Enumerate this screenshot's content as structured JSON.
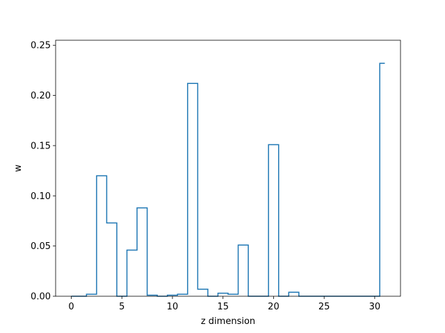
{
  "chart_data": {
    "type": "line",
    "style": "step",
    "title": "",
    "xlabel": "z dimension",
    "ylabel": "w",
    "xlim": [
      -1.55,
      32.55
    ],
    "ylim": [
      0,
      0.255
    ],
    "xticks": [
      0,
      5,
      10,
      15,
      20,
      25,
      30
    ],
    "xtick_labels": [
      "0",
      "5",
      "10",
      "15",
      "20",
      "25",
      "30"
    ],
    "yticks": [
      0,
      0.05,
      0.1,
      0.15,
      0.2,
      0.25
    ],
    "ytick_labels": [
      "0.00",
      "0.05",
      "0.10",
      "0.15",
      "0.20",
      "0.25"
    ],
    "grid": false,
    "line_color": "#1f77b4",
    "x": [
      0,
      1,
      2,
      3,
      4,
      5,
      6,
      7,
      8,
      9,
      10,
      11,
      12,
      13,
      14,
      15,
      16,
      17,
      18,
      19,
      20,
      21,
      22,
      23,
      24,
      25,
      26,
      27,
      28,
      29,
      30,
      31
    ],
    "values": [
      0.0,
      0.0,
      0.002,
      0.12,
      0.073,
      0.0,
      0.046,
      0.088,
      0.001,
      0.0,
      0.001,
      0.002,
      0.212,
      0.007,
      0.0,
      0.003,
      0.002,
      0.051,
      0.0,
      0.0,
      0.151,
      0.0,
      0.004,
      0.0,
      0.0,
      0.0,
      0.0,
      0.0,
      0.0,
      0.0,
      0.0,
      0.232
    ]
  }
}
